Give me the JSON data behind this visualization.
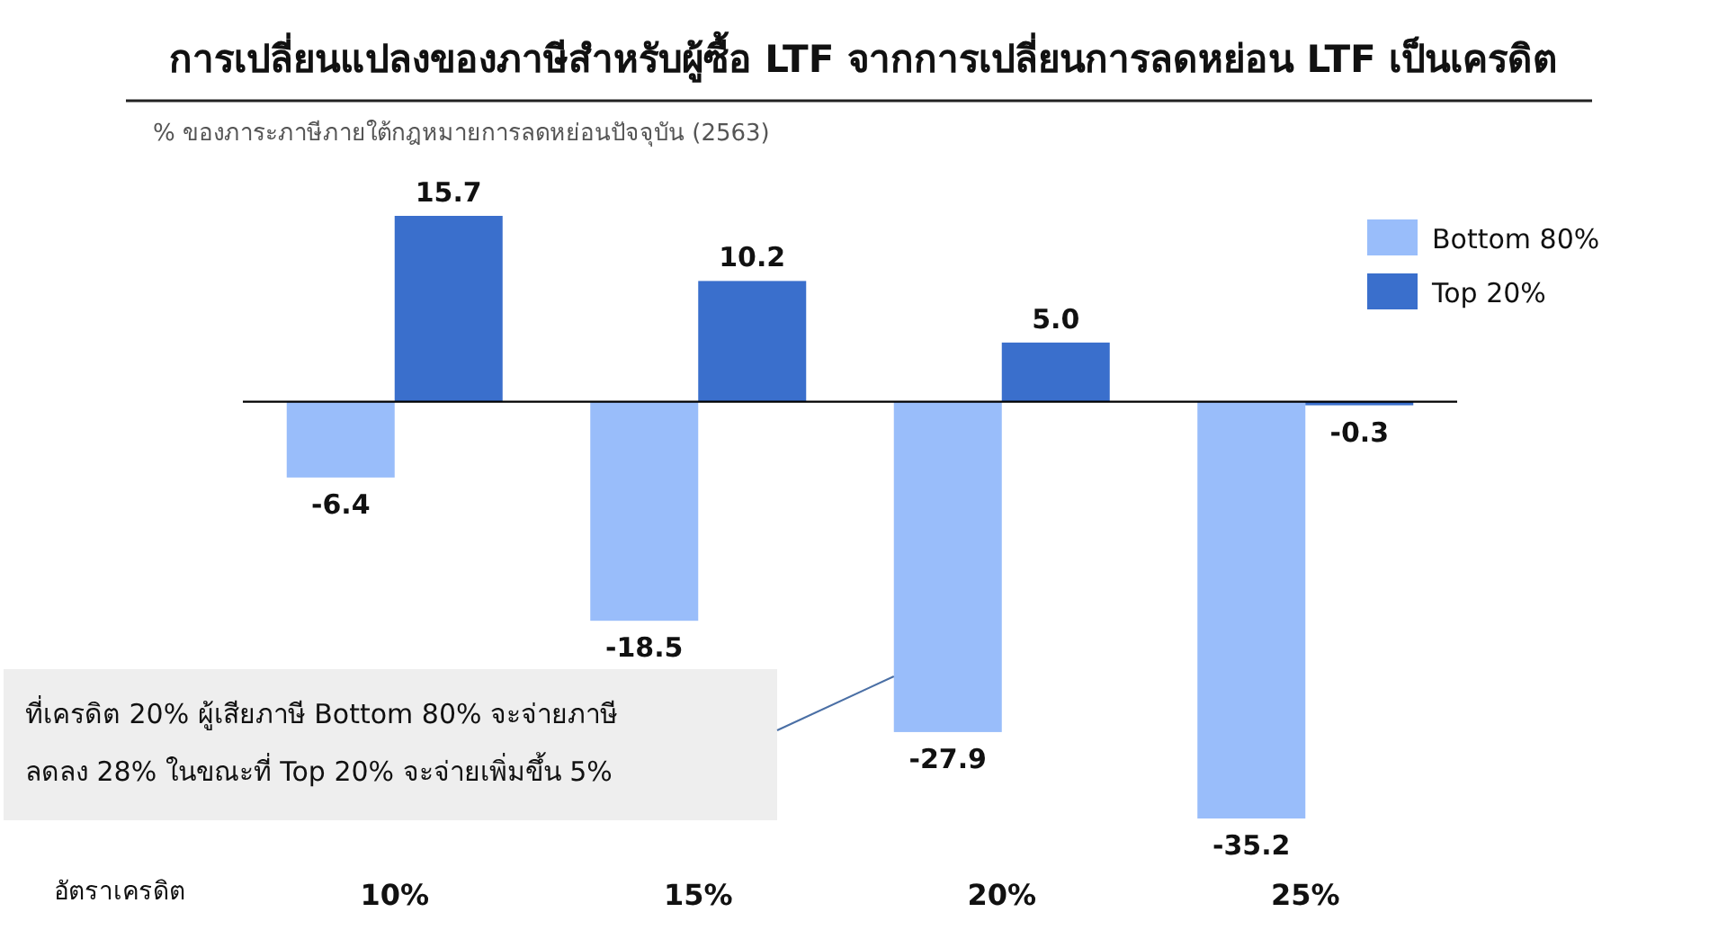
{
  "chart_data": {
    "type": "bar",
    "title": "การเปลี่ยนแปลงของภาษีสำหรับผู้ซื้อ LTF จากการเปลี่ยนการลดหย่อน LTF เป็นเครดิต",
    "subtitle": "% ของภาระภาษีภายใต้กฎหมายการลดหย่อนปัจจุบัน (2563)",
    "xlabel": "อัตราเครดิต",
    "categories": [
      "10%",
      "15%",
      "20%",
      "25%"
    ],
    "series": [
      {
        "name": "Bottom 80%",
        "color": "#99bdfa",
        "values": [
          -6.4,
          -18.5,
          -27.9,
          -35.2
        ],
        "value_labels": [
          "-6.4",
          "-18.5",
          "-27.9",
          "-35.2"
        ]
      },
      {
        "name": "Top 20%",
        "color": "#3a6fcc",
        "values": [
          15.7,
          10.2,
          5.0,
          -0.3
        ],
        "value_labels": [
          "15.7",
          "10.2",
          "5.0",
          "-0.3"
        ]
      }
    ],
    "annotations": [
      "ที่เครดิต 20% ผู้เสียภาษี Bottom 80% จะจ่ายภาษี\nลดลง 28% ในขณะที่ Top 20% จะจ่ายเพิ่มขึ้น 5%"
    ],
    "legend": "top right"
  }
}
